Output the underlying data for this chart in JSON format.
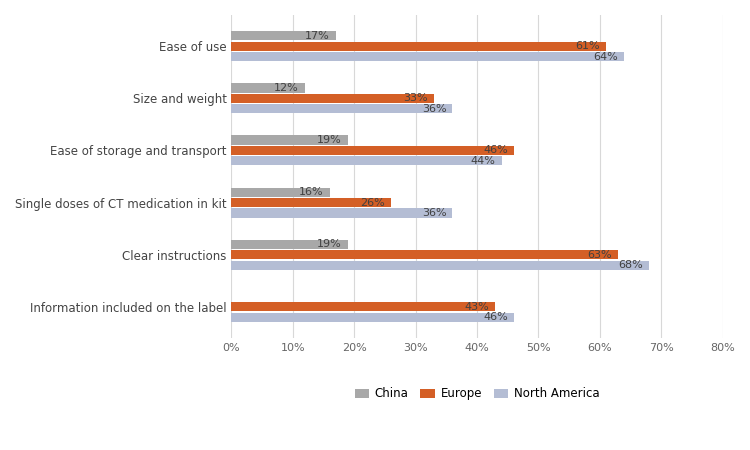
{
  "categories": [
    "Ease of use",
    "Size and weight",
    "Ease of storage and transport",
    "Single doses of CT medication in kit",
    "Clear instructions",
    "Information included on the label"
  ],
  "series": {
    "China": [
      17,
      12,
      19,
      16,
      19,
      0
    ],
    "Europe": [
      61,
      33,
      46,
      26,
      63,
      43
    ],
    "North America": [
      64,
      36,
      44,
      36,
      68,
      46
    ]
  },
  "colors": {
    "China": "#a8a8a8",
    "Europe": "#d45f26",
    "North America": "#b4bdd4"
  },
  "bar_height": 0.2,
  "xlim": [
    0,
    80
  ],
  "xticks": [
    0,
    10,
    20,
    30,
    40,
    50,
    60,
    70,
    80
  ],
  "legend_labels": [
    "China",
    "Europe",
    "North America"
  ],
  "background_color": "#ffffff",
  "grid_color": "#d8d8d8",
  "label_fontsize": 8,
  "tick_fontsize": 8,
  "legend_fontsize": 8.5,
  "category_fontsize": 8.5
}
